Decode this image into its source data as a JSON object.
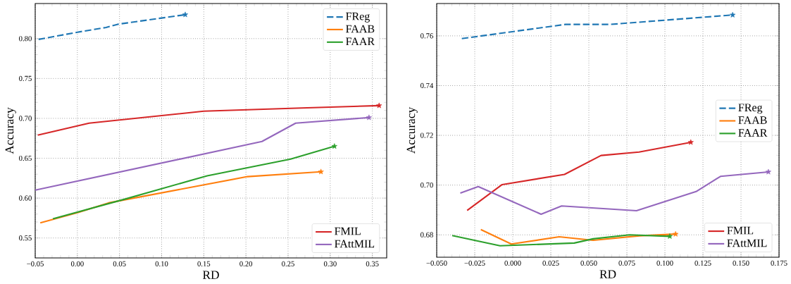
{
  "chart_data": [
    {
      "type": "line",
      "xlabel": "RD",
      "ylabel": "Accuracy",
      "xlim": [
        -0.05,
        0.367
      ],
      "ylim": [
        0.525,
        0.844
      ],
      "xticks": [
        {
          "value": -0.05,
          "label": "−0.05"
        },
        {
          "value": 0.0,
          "label": "0.00"
        },
        {
          "value": 0.05,
          "label": "0.05"
        },
        {
          "value": 0.1,
          "label": "0.10"
        },
        {
          "value": 0.15,
          "label": "0.15"
        },
        {
          "value": 0.2,
          "label": "0.20"
        },
        {
          "value": 0.25,
          "label": "0.25"
        },
        {
          "value": 0.3,
          "label": "0.30"
        },
        {
          "value": 0.35,
          "label": "0.35"
        }
      ],
      "yticks": [
        {
          "value": 0.55,
          "label": "0.55"
        },
        {
          "value": 0.6,
          "label": "0.60"
        },
        {
          "value": 0.65,
          "label": "0.65"
        },
        {
          "value": 0.7,
          "label": "0.70"
        },
        {
          "value": 0.75,
          "label": "0.75"
        },
        {
          "value": 0.8,
          "label": "0.80"
        }
      ],
      "grid": true,
      "legend": "top right",
      "series": [
        {
          "name": "FReg",
          "color": "#1f77b4",
          "line_style": "dashed",
          "x": [
            -0.046,
            0.0,
            0.034,
            0.048,
            0.128
          ],
          "values": [
            0.799,
            0.808,
            0.814,
            0.818,
            0.83
          ]
        },
        {
          "name": "FAAB",
          "color": "#ff7f0e",
          "x": [
            -0.044,
            0.001,
            0.037,
            0.202,
            0.289
          ],
          "values": [
            0.569,
            0.582,
            0.594,
            0.627,
            0.633
          ]
        },
        {
          "name": "FAAR",
          "color": "#2ca02c",
          "x": [
            -0.029,
            0.054,
            0.154,
            0.253,
            0.305
          ],
          "values": [
            0.574,
            0.598,
            0.628,
            0.649,
            0.665
          ]
        },
        {
          "name": "FMIL",
          "color": "#d62728",
          "x": [
            -0.047,
            0.014,
            0.15,
            0.266,
            0.358
          ],
          "values": [
            0.679,
            0.694,
            0.709,
            0.713,
            0.716
          ]
        },
        {
          "name": "FAttMIL",
          "color": "#9467bd",
          "x": [
            -0.05,
            0.219,
            0.259,
            0.346
          ],
          "values": [
            0.61,
            0.671,
            0.694,
            0.701
          ]
        },
        {
          "type": "scatter",
          "marker": "star",
          "color": "#1f77b4",
          "x": [
            0.128
          ],
          "values": [
            0.83
          ]
        },
        {
          "type": "scatter",
          "marker": "star",
          "color": "#ff7f0e",
          "x": [
            0.289
          ],
          "values": [
            0.633
          ]
        },
        {
          "type": "scatter",
          "marker": "star",
          "color": "#2ca02c",
          "x": [
            0.305
          ],
          "values": [
            0.665
          ]
        },
        {
          "type": "scatter",
          "marker": "star",
          "color": "#d62728",
          "x": [
            0.358
          ],
          "values": [
            0.716
          ]
        },
        {
          "type": "scatter",
          "marker": "star",
          "color": "#9467bd",
          "x": [
            0.346
          ],
          "values": [
            0.701
          ]
        }
      ]
    },
    {
      "type": "line",
      "xlabel": "RD",
      "ylabel": "Accuracy",
      "xlim": [
        -0.05,
        0.175
      ],
      "ylim": [
        0.671,
        0.773
      ],
      "xticks": [
        {
          "value": -0.05,
          "label": "−0.050"
        },
        {
          "value": -0.025,
          "label": "−0.025"
        },
        {
          "value": 0.0,
          "label": "0.000"
        },
        {
          "value": 0.025,
          "label": "0.025"
        },
        {
          "value": 0.05,
          "label": "0.050"
        },
        {
          "value": 0.075,
          "label": "0.075"
        },
        {
          "value": 0.1,
          "label": "0.100"
        },
        {
          "value": 0.125,
          "label": "0.125"
        },
        {
          "value": 0.15,
          "label": "0.150"
        },
        {
          "value": 0.175,
          "label": "0.175"
        }
      ],
      "yticks": [
        {
          "value": 0.68,
          "label": "0.68"
        },
        {
          "value": 0.7,
          "label": "0.70"
        },
        {
          "value": 0.72,
          "label": "0.72"
        },
        {
          "value": 0.74,
          "label": "0.74"
        },
        {
          "value": 0.76,
          "label": "0.76"
        }
      ],
      "grid": true,
      "legend": "right",
      "series": [
        {
          "name": "FReg",
          "color": "#1f77b4",
          "line_style": "dashed",
          "x": [
            -0.0335,
            0.0346,
            0.064,
            0.1445
          ],
          "values": [
            0.7589,
            0.7646,
            0.7646,
            0.7684
          ]
        },
        {
          "name": "FAAB",
          "color": "#ff7f0e",
          "x": [
            -0.021,
            -0.001,
            0.0305,
            0.0528,
            0.0833,
            0.107
          ],
          "values": [
            0.6821,
            0.6763,
            0.6792,
            0.6778,
            0.6796,
            0.6803
          ]
        },
        {
          "name": "FAAR",
          "color": "#2ca02c",
          "x": [
            -0.0398,
            -0.0084,
            0.0404,
            0.0528,
            0.0767,
            0.1032
          ],
          "values": [
            0.6797,
            0.6756,
            0.6767,
            0.6784,
            0.68,
            0.6794
          ]
        },
        {
          "name": "FMIL",
          "color": "#d62728",
          "x": [
            -0.03,
            -0.007,
            0.034,
            0.058,
            0.083,
            0.117
          ],
          "values": [
            0.6898,
            0.7002,
            0.7043,
            0.7119,
            0.7133,
            0.7172
          ]
        },
        {
          "name": "FAttMIL",
          "color": "#9467bd",
          "x": [
            -0.0345,
            -0.0227,
            0.0186,
            0.0321,
            0.0813,
            0.1205,
            0.1365,
            0.168
          ],
          "values": [
            0.6968,
            0.6994,
            0.6883,
            0.6916,
            0.6897,
            0.6974,
            0.7035,
            0.7053
          ]
        },
        {
          "type": "scatter",
          "marker": "star",
          "color": "#1f77b4",
          "x": [
            0.1445
          ],
          "values": [
            0.7684
          ]
        },
        {
          "type": "scatter",
          "marker": "star",
          "color": "#ff7f0e",
          "x": [
            0.107
          ],
          "values": [
            0.6803
          ]
        },
        {
          "type": "scatter",
          "marker": "star",
          "color": "#2ca02c",
          "x": [
            0.1032
          ],
          "values": [
            0.6794
          ]
        },
        {
          "type": "scatter",
          "marker": "star",
          "color": "#d62728",
          "x": [
            0.117
          ],
          "values": [
            0.7172
          ]
        },
        {
          "type": "scatter",
          "marker": "star",
          "color": "#9467bd",
          "x": [
            0.168
          ],
          "values": [
            0.7053
          ]
        }
      ]
    }
  ]
}
